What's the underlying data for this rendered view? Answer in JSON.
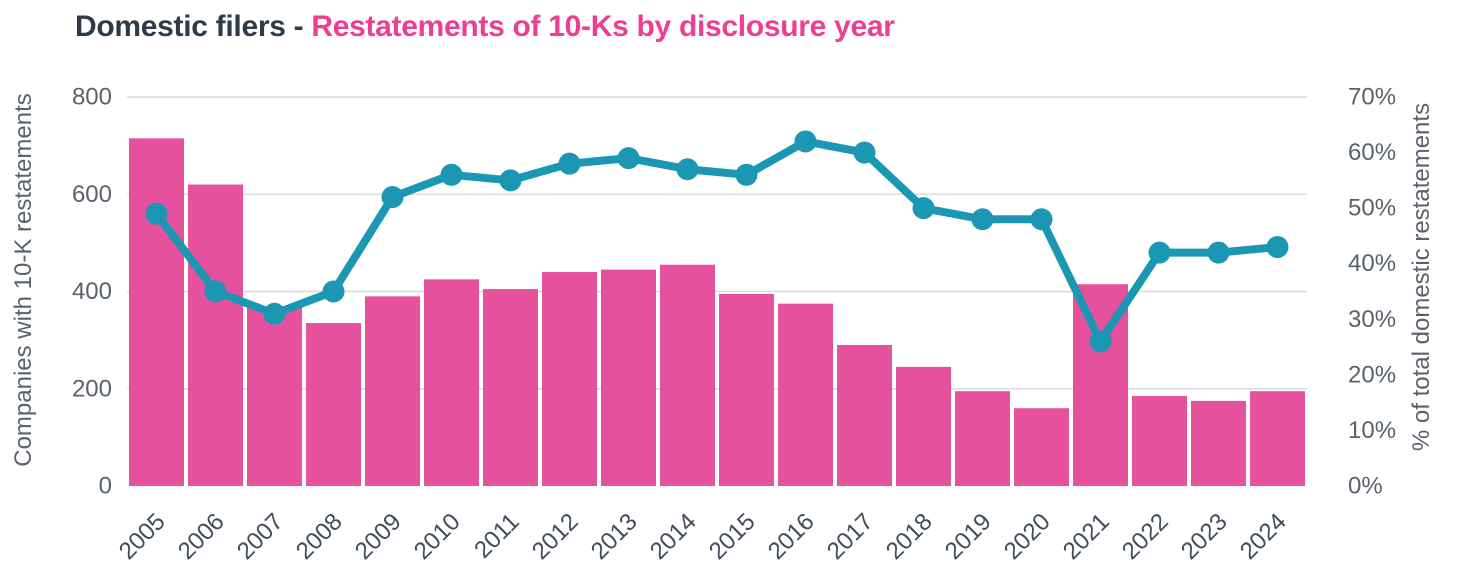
{
  "title": {
    "prefix": "Domestic filers - ",
    "accent": "Restatements of 10-Ks by disclosure year"
  },
  "colors": {
    "background": "#ffffff",
    "bar": "#e6519d",
    "line": "#1b97b4",
    "title_dark": "#2e3b49",
    "title_accent": "#ed3e92",
    "axis_text": "#5a626c",
    "year_text": "#424d5b",
    "gridline": "#d8dbde"
  },
  "chart_data": {
    "type": "bar",
    "subtype": "combo-bar-line-dual-axis",
    "title": "Domestic filers - Restatements of 10-Ks by disclosure year",
    "categories": [
      "2005",
      "2006",
      "2007",
      "2008",
      "2009",
      "2010",
      "2011",
      "2012",
      "2013",
      "2014",
      "2015",
      "2016",
      "2017",
      "2018",
      "2019",
      "2020",
      "2021",
      "2022",
      "2023",
      "2024"
    ],
    "series": [
      {
        "name": "Companies with 10-K restatements",
        "type": "bar",
        "axis": "left",
        "values": [
          715,
          620,
          370,
          335,
          390,
          425,
          405,
          440,
          445,
          455,
          395,
          375,
          290,
          245,
          195,
          160,
          415,
          185,
          175,
          195
        ]
      },
      {
        "name": "% of total domestic restatements",
        "type": "line",
        "axis": "right",
        "values": [
          49,
          35,
          31,
          35,
          52,
          56,
          55,
          58,
          59,
          57,
          56,
          62,
          60,
          50,
          48,
          48,
          26,
          42,
          42,
          43
        ]
      }
    ],
    "left_axis": {
      "label": "Companies with 10-K restatements",
      "ticks": [
        0,
        200,
        400,
        600,
        800
      ],
      "range": [
        0,
        800
      ]
    },
    "right_axis": {
      "label": "% of total domestic restatements",
      "ticks": [
        0,
        10,
        20,
        30,
        40,
        50,
        60,
        70
      ],
      "tick_labels": [
        "0%",
        "10%",
        "20%",
        "30%",
        "40%",
        "50%",
        "60%",
        "70%"
      ],
      "range": [
        0,
        70
      ]
    },
    "xlabel": "",
    "grid": "horizontal",
    "legend": "none"
  }
}
